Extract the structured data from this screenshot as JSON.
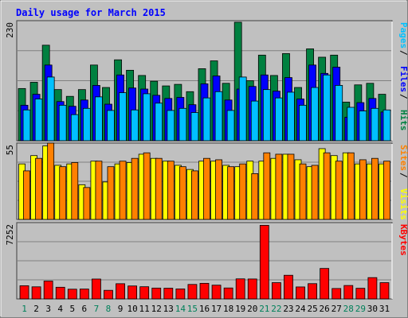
{
  "chart_data": {
    "type": "bar",
    "title": "Daily usage for March 2015",
    "categories": [
      "1",
      "2",
      "3",
      "4",
      "5",
      "6",
      "7",
      "8",
      "9",
      "10",
      "11",
      "12",
      "13",
      "14",
      "15",
      "16",
      "17",
      "18",
      "19",
      "20",
      "21",
      "22",
      "23",
      "24",
      "25",
      "26",
      "27",
      "28",
      "29",
      "30",
      "31"
    ],
    "weekend_days": [
      "1",
      "7",
      "8",
      "14",
      "15",
      "21",
      "22",
      "28",
      "29"
    ],
    "panels": [
      {
        "id": "hits-panel",
        "ytick": "230",
        "ylim": [
          0,
          230
        ],
        "series": [
          {
            "name": "Hits",
            "color": "#008040",
            "values": [
              100,
              112,
              183,
              98,
              85,
              98,
              145,
              102,
              155,
              135,
              125,
              114,
              105,
              108,
              94,
              138,
              153,
              110,
              227,
              115,
              164,
              125,
              167,
              102,
              176,
              160,
              164,
              74,
              107,
              110,
              89
            ]
          },
          {
            "name": "Files",
            "color": "#0000ff",
            "values": [
              68,
              89,
              145,
              75,
              66,
              78,
              106,
              70,
              126,
              101,
              99,
              87,
              81,
              83,
              69,
              109,
              124,
              78,
              99,
              104,
              126,
              95,
              121,
              80,
              145,
              129,
              141,
              45,
              73,
              81,
              55
            ]
          },
          {
            "name": "Pages",
            "color": "#00c0ff",
            "values": [
              59,
              80,
              122,
              68,
              50,
              62,
              84,
              58,
              92,
              59,
              90,
              72,
              58,
              62,
              54,
              82,
              94,
              58,
              122,
              76,
              98,
              82,
              93,
              68,
              102,
              126,
              106,
              64,
              57,
              62,
              59
            ]
          }
        ]
      },
      {
        "id": "visits-panel",
        "ytick": "55",
        "ylim": [
          0,
          55
        ],
        "series": [
          {
            "name": "Visits",
            "color": "#ffff00",
            "values": [
              40,
              46,
              53,
              39,
              40,
              25,
              42,
              27,
              40,
              41,
              47,
              44,
              42,
              39,
              36,
              42,
              42,
              39,
              38,
              42,
              42,
              44,
              47,
              43,
              38,
              51,
              46,
              48,
              40,
              40,
              40
            ]
          },
          {
            "name": "Sites",
            "color": "#ff8000",
            "values": [
              35,
              44,
              55,
              38,
              41,
              23,
              42,
              38,
              42,
              44,
              48,
              44,
              42,
              38,
              35,
              44,
              43,
              38,
              40,
              33,
              48,
              47,
              47,
              40,
              39,
              48,
              42,
              48,
              43,
              44,
              42
            ]
          }
        ]
      },
      {
        "id": "kbytes-panel",
        "ytick": "7252",
        "ylim": [
          0,
          7252
        ],
        "series": [
          {
            "name": "KBytes",
            "color": "#ff0000",
            "values": [
              1253,
              1150,
              1697,
              1110,
              925,
              940,
              1890,
              817,
              1446,
              1232,
              1159,
              1032,
              1019,
              951,
              1376,
              1483,
              1308,
              1041,
              1907,
              1895,
              6992,
              1547,
              2249,
              1139,
              1452,
              2897,
              990,
              1276,
              1012,
              2026,
              1547
            ]
          }
        ]
      }
    ]
  }
}
